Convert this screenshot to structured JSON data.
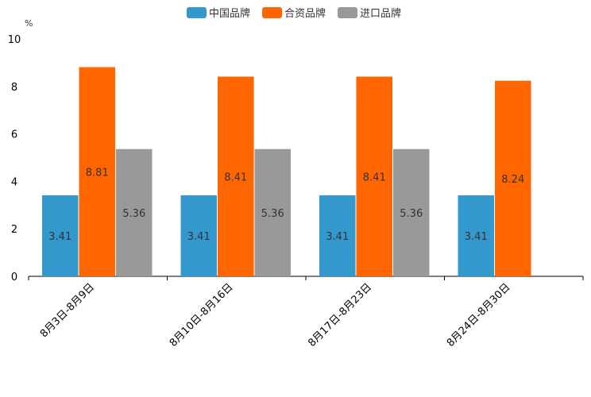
{
  "chart_data": {
    "type": "bar",
    "title": "",
    "xlabel": "",
    "ylabel": "%",
    "ylim": [
      0,
      10
    ],
    "yticks": [
      0,
      2,
      4,
      6,
      8,
      10
    ],
    "grid": false,
    "legend_position": "top-center",
    "categories": [
      "8月3日-8月9日",
      "8月10日-8月16日",
      "8月17日-8月23日",
      "8月24日-8月30日"
    ],
    "series": [
      {
        "name": "中国品牌",
        "color": "#3399cc",
        "values": [
          3.41,
          3.41,
          3.41,
          3.41
        ],
        "labels": [
          "3.41",
          "3.41",
          "3.41",
          "3.41"
        ]
      },
      {
        "name": "合资品牌",
        "color": "#ff6600",
        "values": [
          8.81,
          8.41,
          8.41,
          8.24
        ],
        "labels": [
          "8.81",
          "8.41",
          "8.41",
          "8.24"
        ]
      },
      {
        "name": "进口品牌",
        "color": "#999999",
        "values": [
          5.36,
          5.36,
          5.36,
          null
        ],
        "labels": [
          "5.36",
          "5.36",
          "5.36",
          null
        ]
      }
    ]
  }
}
